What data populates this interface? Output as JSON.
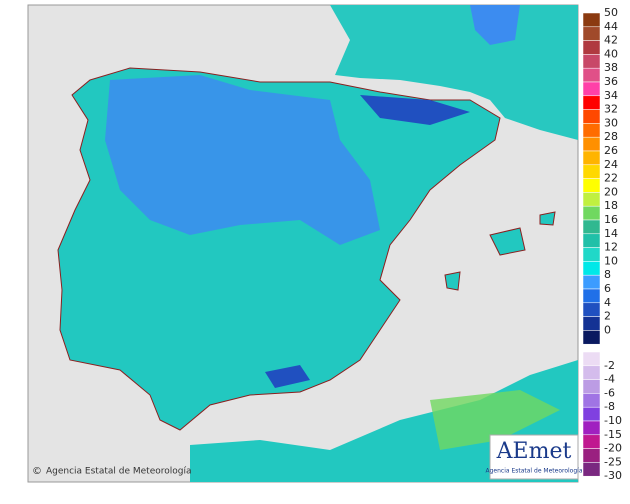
{
  "credit": "Agencia Estatal de Meteorología",
  "logo": {
    "brand": "AEmet",
    "caption": "Agencia Estatal de Meteorología"
  },
  "legend_positive": [
    {
      "label": "50",
      "color": "#8b3a10"
    },
    {
      "label": "44",
      "color": "#a04a2a"
    },
    {
      "label": "42",
      "color": "#b03a40"
    },
    {
      "label": "40",
      "color": "#c84868"
    },
    {
      "label": "38",
      "color": "#e05088"
    },
    {
      "label": "36",
      "color": "#ff40a8"
    },
    {
      "label": "34",
      "color": "#ff0000"
    },
    {
      "label": "32",
      "color": "#ff4800"
    },
    {
      "label": "30",
      "color": "#ff6c00"
    },
    {
      "label": "28",
      "color": "#ff9000"
    },
    {
      "label": "26",
      "color": "#ffb400"
    },
    {
      "label": "24",
      "color": "#ffd800"
    },
    {
      "label": "22",
      "color": "#ffff00"
    },
    {
      "label": "20",
      "color": "#c0f040"
    },
    {
      "label": "18",
      "color": "#70d860"
    },
    {
      "label": "16",
      "color": "#30b890"
    },
    {
      "label": "14",
      "color": "#20c0a8"
    },
    {
      "label": "12",
      "color": "#20d8c8"
    },
    {
      "label": "10",
      "color": "#00e8e8"
    },
    {
      "label": "8",
      "color": "#3c9cff"
    },
    {
      "label": "6",
      "color": "#2070e8"
    },
    {
      "label": "4",
      "color": "#2050c0"
    },
    {
      "label": "2",
      "color": "#143294"
    },
    {
      "label": "0",
      "color": "#0a1a60"
    }
  ],
  "legend_negative": [
    {
      "label": "-2",
      "color": "#ecdcf4"
    },
    {
      "label": "-4",
      "color": "#d4bcec"
    },
    {
      "label": "-6",
      "color": "#bc9ce4"
    },
    {
      "label": "-8",
      "color": "#a074e4"
    },
    {
      "label": "-10",
      "color": "#8040e0"
    },
    {
      "label": "-15",
      "color": "#a020c0"
    },
    {
      "label": "-20",
      "color": "#c01890"
    },
    {
      "label": "-25",
      "color": "#9a2080"
    },
    {
      "label": "-30",
      "color": "#7a2880"
    }
  ]
}
